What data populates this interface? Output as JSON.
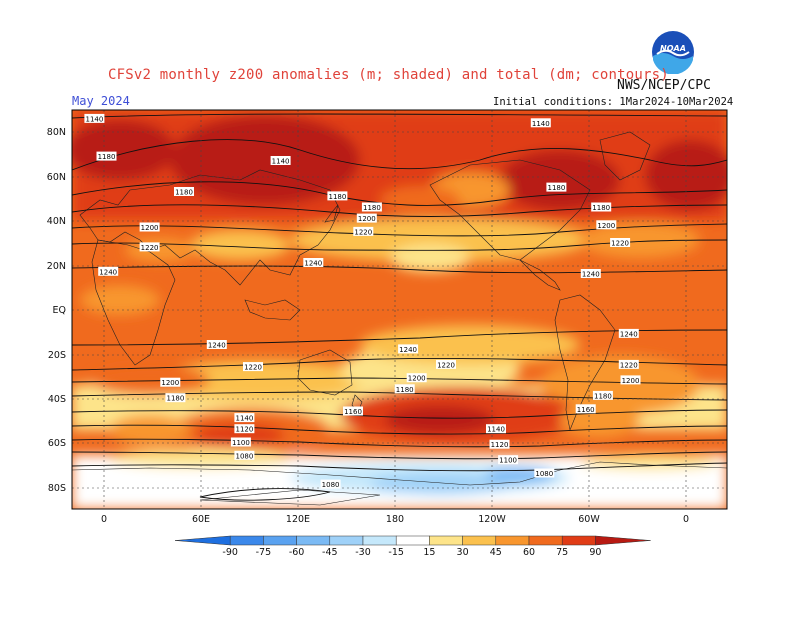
{
  "header": {
    "title": "CFSv2 monthly z200 anomalies (m; shaded) and total (dm; contours)",
    "valid_month": "May 2024",
    "initial_conditions": "Initial conditions: 1Mar2024-10Mar2024",
    "agency": "NWS/NCEP/CPC",
    "logo_text": "NOAA"
  },
  "axes": {
    "lat_labels": [
      "80N",
      "60N",
      "40N",
      "20N",
      "EQ",
      "20S",
      "40S",
      "60S",
      "80S"
    ],
    "lon_labels": [
      "0",
      "60E",
      "120E",
      "180",
      "120W",
      "60W",
      "0"
    ]
  },
  "colorbar": {
    "ticks": [
      "-90",
      "-75",
      "-60",
      "-45",
      "-30",
      "-15",
      "15",
      "30",
      "45",
      "60",
      "75",
      "90"
    ],
    "colors": [
      "#1e6fe0",
      "#3b88ea",
      "#5aa2f0",
      "#7bbaf4",
      "#9fd1f8",
      "#c5e8fb",
      "#ffffff",
      "#fde48a",
      "#fbc14e",
      "#f8962e",
      "#f06a1e",
      "#e03c16",
      "#b81a12"
    ]
  },
  "contour_labels": [
    {
      "text": "1140",
      "lon": -7,
      "lat": 86
    },
    {
      "text": "1140",
      "lon": 252,
      "lat": 84
    },
    {
      "text": "1180",
      "lon": 0,
      "lat": 69
    },
    {
      "text": "1140",
      "lon": 101,
      "lat": 67
    },
    {
      "text": "1180",
      "lon": 261,
      "lat": 55
    },
    {
      "text": "1180",
      "lon": 45,
      "lat": 53
    },
    {
      "text": "1180",
      "lon": 134,
      "lat": 51
    },
    {
      "text": "1180",
      "lon": 154,
      "lat": 46
    },
    {
      "text": "1180",
      "lon": 287,
      "lat": 46
    },
    {
      "text": "1200",
      "lon": 151,
      "lat": 41
    },
    {
      "text": "1200",
      "lon": 290,
      "lat": 38
    },
    {
      "text": "1220",
      "lon": 149,
      "lat": 35
    },
    {
      "text": "1220",
      "lon": 298,
      "lat": 30
    },
    {
      "text": "1200",
      "lon": 25,
      "lat": 37
    },
    {
      "text": "1220",
      "lon": 25,
      "lat": 28
    },
    {
      "text": "1240",
      "lon": 120,
      "lat": 21
    },
    {
      "text": "1240",
      "lon": 281,
      "lat": 16
    },
    {
      "text": "1240",
      "lon": 1,
      "lat": 17
    },
    {
      "text": "1240",
      "lon": 303,
      "lat": -11
    },
    {
      "text": "1240",
      "lon": 64,
      "lat": -16
    },
    {
      "text": "1240",
      "lon": 175,
      "lat": -18
    },
    {
      "text": "1220",
      "lon": 85,
      "lat": -26
    },
    {
      "text": "1220",
      "lon": 197,
      "lat": -25
    },
    {
      "text": "1220",
      "lon": 303,
      "lat": -25
    },
    {
      "text": "1200",
      "lon": 37,
      "lat": -33
    },
    {
      "text": "1200",
      "lon": 180,
      "lat": -31
    },
    {
      "text": "1200",
      "lon": 304,
      "lat": -32
    },
    {
      "text": "1180",
      "lon": 40,
      "lat": -40
    },
    {
      "text": "1180",
      "lon": 173,
      "lat": -36
    },
    {
      "text": "1180",
      "lon": 288,
      "lat": -39
    },
    {
      "text": "1160",
      "lon": 143,
      "lat": -46
    },
    {
      "text": "1160",
      "lon": 278,
      "lat": -45
    },
    {
      "text": "1140",
      "lon": 80,
      "lat": -49
    },
    {
      "text": "1120",
      "lon": 80,
      "lat": -54
    },
    {
      "text": "1100",
      "lon": 78,
      "lat": -60
    },
    {
      "text": "1140",
      "lon": 226,
      "lat": -54
    },
    {
      "text": "1120",
      "lon": 228,
      "lat": -61
    },
    {
      "text": "1080",
      "lon": 80,
      "lat": -66
    },
    {
      "text": "1100",
      "lon": 233,
      "lat": -68
    },
    {
      "text": "1080",
      "lon": 254,
      "lat": -74
    },
    {
      "text": "1080",
      "lon": 130,
      "lat": -79
    }
  ]
}
